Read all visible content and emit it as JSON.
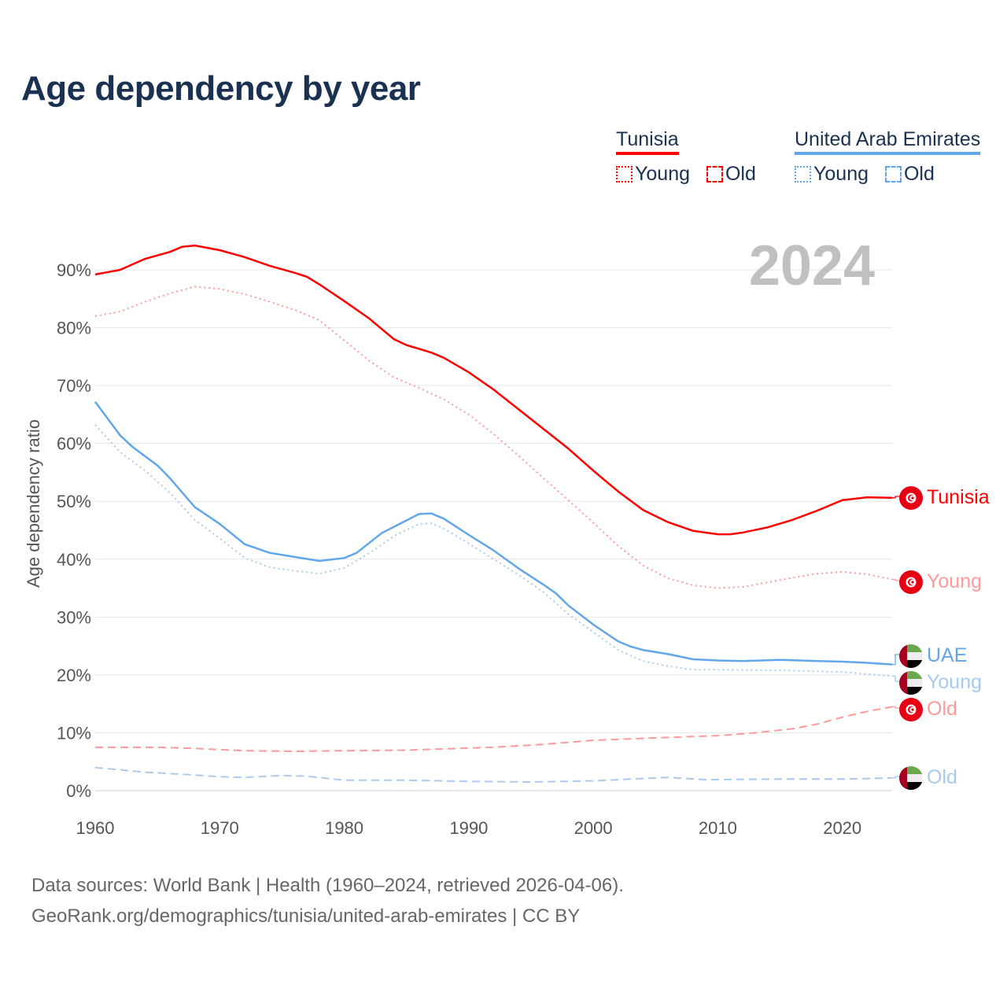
{
  "title": "Age dependency by year",
  "legend": {
    "groups": [
      {
        "country": "Tunisia",
        "color": "#ff0000",
        "items": [
          "Young",
          "Old"
        ]
      },
      {
        "country": "United Arab Emirates",
        "color": "#62a6ea",
        "items": [
          "Young",
          "Old"
        ]
      }
    ]
  },
  "year_watermark": "2024",
  "footer": {
    "line1": "Data sources: World Bank | Health (1960–2024, retrieved 2026-04-06).",
    "line2": "GeoRank.org/demographics/tunisia/united-arab-emirates | CC BY"
  },
  "chart_data": {
    "type": "line",
    "title": "Age dependency by year",
    "xlabel": "",
    "ylabel": "Age dependency ratio",
    "xlim": [
      1960,
      2024
    ],
    "ylim": [
      0,
      90
    ],
    "x_ticks": [
      "1960",
      "1970",
      "1980",
      "1990",
      "2000",
      "2010",
      "2020"
    ],
    "y_ticks": [
      "0%",
      "10%",
      "20%",
      "30%",
      "40%",
      "50%",
      "60%",
      "70%",
      "80%",
      "90%"
    ],
    "grid": true,
    "series": [
      {
        "name": "Tunisia",
        "label": "Tunisia",
        "flag": "tunisia",
        "color": "#ff0000",
        "style": "solid",
        "points": [
          [
            1960,
            89.2
          ],
          [
            1962,
            90
          ],
          [
            1964,
            91.9
          ],
          [
            1966,
            93.1
          ],
          [
            1967,
            94
          ],
          [
            1968,
            94.2
          ],
          [
            1970,
            93.4
          ],
          [
            1972,
            92.2
          ],
          [
            1974,
            90.7
          ],
          [
            1976,
            89.5
          ],
          [
            1977,
            88.8
          ],
          [
            1978,
            87.5
          ],
          [
            1980,
            84.6
          ],
          [
            1982,
            81.6
          ],
          [
            1983,
            79.8
          ],
          [
            1984,
            78
          ],
          [
            1985,
            77
          ],
          [
            1987,
            75.7
          ],
          [
            1988,
            74.8
          ],
          [
            1990,
            72.3
          ],
          [
            1992,
            69.3
          ],
          [
            1994,
            65.9
          ],
          [
            1996,
            62.5
          ],
          [
            1998,
            59.1
          ],
          [
            2000,
            55.3
          ],
          [
            2002,
            51.7
          ],
          [
            2004,
            48.5
          ],
          [
            2006,
            46.4
          ],
          [
            2008,
            44.9
          ],
          [
            2010,
            44.3
          ],
          [
            2011,
            44.3
          ],
          [
            2012,
            44.6
          ],
          [
            2014,
            45.5
          ],
          [
            2016,
            46.8
          ],
          [
            2018,
            48.4
          ],
          [
            2020,
            50.2
          ],
          [
            2022,
            50.7
          ],
          [
            2024,
            50.6
          ]
        ]
      },
      {
        "name": "Tunisia Young",
        "label": "Young",
        "flag": "tunisia",
        "color": "#ff9a9a",
        "style": "dotted",
        "points": [
          [
            1960,
            82
          ],
          [
            1962,
            82.8
          ],
          [
            1964,
            84.5
          ],
          [
            1966,
            85.9
          ],
          [
            1968,
            87.1
          ],
          [
            1970,
            86.7
          ],
          [
            1972,
            85.8
          ],
          [
            1974,
            84.5
          ],
          [
            1976,
            83.1
          ],
          [
            1978,
            81.3
          ],
          [
            1980,
            77.8
          ],
          [
            1982,
            74.3
          ],
          [
            1984,
            71.4
          ],
          [
            1986,
            69.6
          ],
          [
            1988,
            67.6
          ],
          [
            1990,
            65
          ],
          [
            1992,
            61.6
          ],
          [
            1994,
            57.9
          ],
          [
            1996,
            54
          ],
          [
            1998,
            50.2
          ],
          [
            2000,
            46.3
          ],
          [
            2002,
            42.3
          ],
          [
            2004,
            38.9
          ],
          [
            2006,
            36.7
          ],
          [
            2008,
            35.5
          ],
          [
            2010,
            35
          ],
          [
            2012,
            35.2
          ],
          [
            2014,
            36
          ],
          [
            2016,
            36.8
          ],
          [
            2018,
            37.5
          ],
          [
            2020,
            37.8
          ],
          [
            2022,
            37.4
          ],
          [
            2024,
            36.5
          ]
        ]
      },
      {
        "name": "Tunisia Old",
        "label": "Old",
        "flag": "tunisia",
        "color": "#ff9a9a",
        "style": "dashed",
        "points": [
          [
            1960,
            7.5
          ],
          [
            1965,
            7.5
          ],
          [
            1968,
            7.3
          ],
          [
            1972,
            6.9
          ],
          [
            1976,
            6.8
          ],
          [
            1980,
            6.9
          ],
          [
            1985,
            7.0
          ],
          [
            1992,
            7.5
          ],
          [
            1996,
            8
          ],
          [
            2000,
            8.7
          ],
          [
            2006,
            9.2
          ],
          [
            2010,
            9.5
          ],
          [
            2013,
            10
          ],
          [
            2016,
            10.7
          ],
          [
            2018,
            11.5
          ],
          [
            2020,
            12.7
          ],
          [
            2022,
            13.7
          ],
          [
            2024,
            14.5
          ]
        ]
      },
      {
        "name": "UAE",
        "label": "UAE",
        "flag": "uae",
        "color": "#62a6ea",
        "style": "solid",
        "points": [
          [
            1960,
            67.2
          ],
          [
            1962,
            61.4
          ],
          [
            1963,
            59.4
          ],
          [
            1965,
            56.2
          ],
          [
            1966,
            54
          ],
          [
            1968,
            49
          ],
          [
            1970,
            46.1
          ],
          [
            1972,
            42.6
          ],
          [
            1974,
            41.1
          ],
          [
            1976,
            40.4
          ],
          [
            1978,
            39.7
          ],
          [
            1980,
            40.2
          ],
          [
            1981,
            41.1
          ],
          [
            1983,
            44.5
          ],
          [
            1985,
            46.7
          ],
          [
            1986,
            47.8
          ],
          [
            1987,
            47.9
          ],
          [
            1988,
            47
          ],
          [
            1990,
            44.2
          ],
          [
            1992,
            41.5
          ],
          [
            1994,
            38.4
          ],
          [
            1996,
            35.6
          ],
          [
            1997,
            34.1
          ],
          [
            1998,
            32
          ],
          [
            2000,
            28.7
          ],
          [
            2002,
            25.8
          ],
          [
            2003,
            24.9
          ],
          [
            2004,
            24.3
          ],
          [
            2006,
            23.6
          ],
          [
            2008,
            22.7
          ],
          [
            2010,
            22.5
          ],
          [
            2012,
            22.4
          ],
          [
            2015,
            22.6
          ],
          [
            2018,
            22.4
          ],
          [
            2020,
            22.3
          ],
          [
            2022,
            22.1
          ],
          [
            2024,
            21.8
          ]
        ]
      },
      {
        "name": "UAE Young",
        "label": "Young",
        "flag": "uae",
        "color": "#a6cbf1",
        "style": "dotted",
        "points": [
          [
            1960,
            63.2
          ],
          [
            1962,
            58.5
          ],
          [
            1964,
            55.3
          ],
          [
            1966,
            51.5
          ],
          [
            1968,
            46.8
          ],
          [
            1970,
            43.6
          ],
          [
            1972,
            40.2
          ],
          [
            1974,
            38.6
          ],
          [
            1976,
            38
          ],
          [
            1978,
            37.5
          ],
          [
            1980,
            38.5
          ],
          [
            1982,
            41
          ],
          [
            1984,
            44
          ],
          [
            1986,
            46.1
          ],
          [
            1987,
            46.2
          ],
          [
            1988,
            45.3
          ],
          [
            1990,
            42.7
          ],
          [
            1992,
            40
          ],
          [
            1994,
            37.3
          ],
          [
            1996,
            34.3
          ],
          [
            1998,
            30.5
          ],
          [
            2000,
            27.4
          ],
          [
            2002,
            24.3
          ],
          [
            2004,
            22.4
          ],
          [
            2006,
            21.5
          ],
          [
            2008,
            20.9
          ],
          [
            2010,
            20.9
          ],
          [
            2015,
            20.8
          ],
          [
            2020,
            20.5
          ],
          [
            2024,
            19.8
          ]
        ]
      },
      {
        "name": "UAE Old",
        "label": "Old",
        "flag": "uae",
        "color": "#a6cbf1",
        "style": "dashed",
        "points": [
          [
            1960,
            4
          ],
          [
            1964,
            3.2
          ],
          [
            1968,
            2.7
          ],
          [
            1970,
            2.4
          ],
          [
            1972,
            2.3
          ],
          [
            1975,
            2.6
          ],
          [
            1977,
            2.5
          ],
          [
            1980,
            1.8
          ],
          [
            1985,
            1.8
          ],
          [
            1990,
            1.6
          ],
          [
            1995,
            1.5
          ],
          [
            2000,
            1.7
          ],
          [
            2003,
            2
          ],
          [
            2006,
            2.3
          ],
          [
            2009,
            1.9
          ],
          [
            2015,
            2
          ],
          [
            2020,
            2
          ],
          [
            2024,
            2.2
          ]
        ]
      }
    ]
  }
}
